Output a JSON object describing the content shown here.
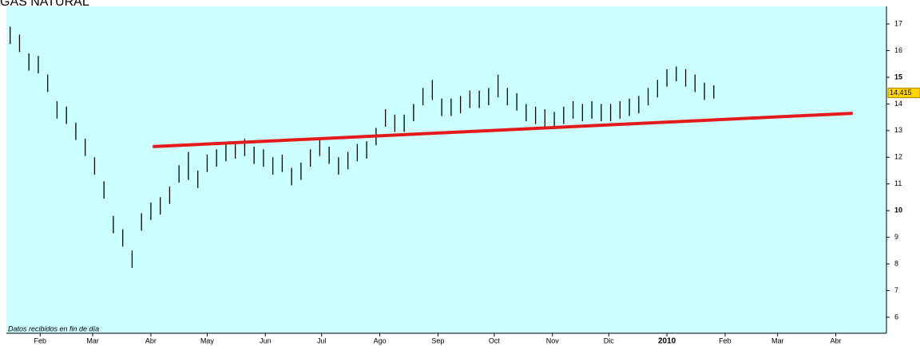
{
  "chart_data": {
    "type": "ohlc",
    "title": "GAS NATURAL",
    "footnote": "Datos recibidos en fin de día",
    "color": "#000000",
    "background": "#ccffff",
    "x": [
      15,
      20,
      25,
      30,
      35,
      40,
      45,
      50,
      55,
      60,
      65,
      70,
      75,
      80,
      85,
      90,
      95,
      100,
      105,
      110,
      115,
      120,
      125,
      130,
      135,
      140,
      145,
      150,
      155,
      160,
      165,
      170,
      175,
      180,
      185,
      190,
      195,
      200,
      205,
      210,
      215,
      220,
      225,
      230,
      235,
      240,
      245,
      250,
      255,
      260,
      265,
      270,
      275,
      280,
      285,
      290,
      295,
      300,
      305,
      310,
      315,
      320,
      325,
      330,
      335,
      340,
      345,
      350,
      355,
      360,
      365,
      370,
      375,
      380,
      385,
      390
    ],
    "high": [
      16.9,
      16.6,
      15.9,
      15.8,
      15.1,
      14.1,
      13.9,
      13.3,
      12.7,
      12.0,
      11.1,
      9.8,
      9.3,
      8.5,
      9.9,
      10.3,
      10.5,
      10.9,
      11.7,
      12.2,
      11.5,
      12.1,
      12.3,
      12.5,
      12.6,
      12.7,
      12.4,
      12.3,
      12.0,
      12.1,
      11.6,
      11.8,
      12.3,
      12.7,
      12.4,
      12.0,
      12.2,
      12.5,
      12.6,
      13.1,
      13.8,
      13.6,
      13.6,
      14.0,
      14.6,
      14.9,
      14.2,
      14.2,
      14.3,
      14.5,
      14.5,
      14.6,
      15.1,
      14.6,
      14.4,
      14.0,
      13.9,
      13.8,
      13.7,
      13.9,
      14.1,
      14.0,
      14.1,
      14.0,
      14.0,
      14.1,
      14.2,
      14.3,
      14.6,
      14.9,
      15.3,
      15.4,
      15.3,
      15.1,
      14.8,
      14.7
    ],
    "low": [
      16.25,
      15.95,
      15.25,
      15.15,
      14.45,
      13.45,
      13.25,
      12.65,
      12.05,
      11.35,
      10.45,
      9.15,
      8.65,
      7.85,
      9.25,
      9.65,
      9.85,
      10.25,
      11.05,
      11.15,
      10.85,
      11.45,
      11.65,
      11.85,
      11.95,
      12.05,
      11.75,
      11.65,
      11.35,
      11.45,
      10.95,
      11.15,
      11.65,
      12.05,
      11.75,
      11.35,
      11.55,
      11.85,
      11.95,
      12.45,
      13.15,
      12.95,
      12.95,
      13.35,
      13.95,
      14.15,
      13.55,
      13.55,
      13.65,
      13.85,
      13.85,
      13.95,
      14.25,
      13.95,
      13.75,
      13.35,
      13.25,
      13.15,
      13.05,
      13.25,
      13.45,
      13.35,
      13.45,
      13.35,
      13.35,
      13.45,
      13.55,
      13.65,
      13.95,
      14.25,
      14.65,
      14.85,
      14.65,
      14.45,
      14.15,
      14.2
    ],
    "trendline": {
      "color": "#e41a1a",
      "x": [
        91,
        464
      ],
      "y": [
        12.4,
        13.65
      ]
    },
    "last_price": {
      "value": 14.415,
      "label": "14,415"
    },
    "xlim": [
      13,
      482
    ],
    "xticks": [
      {
        "value": 31,
        "label": "Feb"
      },
      {
        "value": 59,
        "label": "Mar"
      },
      {
        "value": 90,
        "label": "Abr"
      },
      {
        "value": 120,
        "label": "May"
      },
      {
        "value": 151,
        "label": "Jun"
      },
      {
        "value": 181,
        "label": "Jul"
      },
      {
        "value": 212,
        "label": "Ago"
      },
      {
        "value": 243,
        "label": "Sep"
      },
      {
        "value": 273,
        "label": "Oct"
      },
      {
        "value": 304,
        "label": "Nov"
      },
      {
        "value": 334,
        "label": "Dic"
      },
      {
        "value": 365,
        "label": "2010"
      },
      {
        "value": 396,
        "label": "Feb"
      },
      {
        "value": 424,
        "label": "Mar"
      },
      {
        "value": 455,
        "label": "Abr"
      }
    ],
    "ylim": [
      5.4,
      17.66
    ],
    "yticks": [
      6,
      7,
      8,
      9,
      10,
      11,
      12,
      13,
      14,
      15,
      16,
      17
    ]
  }
}
